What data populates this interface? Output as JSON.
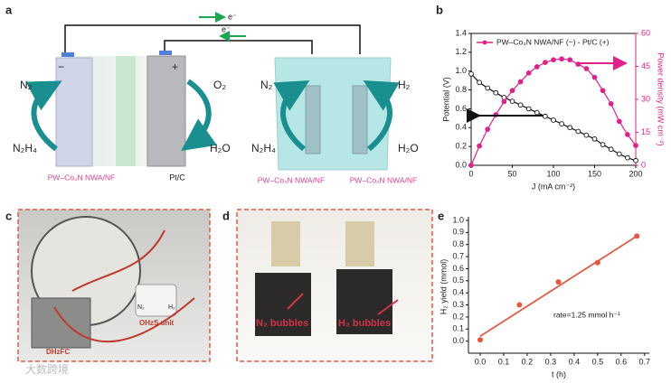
{
  "labels": [
    "a",
    "b",
    "c",
    "d",
    "e"
  ],
  "diagram": {
    "electron_top": "e⁻",
    "electron_inner": "e⁻",
    "minus": "−",
    "plus": "+",
    "left_cell": {
      "anode_out": "N₂",
      "anode_in": "N₂H₄",
      "anode": "PW–Co₃N NWA/NF",
      "cathode_in": "O₂",
      "cathode_out": "H₂O",
      "cathode": "Pt/C"
    },
    "right_cell": {
      "left_out": "N₂",
      "left_in": "N₂H₄",
      "left": "PW–Co₃N NWA/NF",
      "right_out": "H₂",
      "right_in": "H₂O",
      "right": "PW–Co₃N NWA/NF"
    }
  },
  "photo_c": {
    "device": "DHzFC",
    "unit": "OHzS unit",
    "n2": "N₂",
    "h2": "H₂"
  },
  "photo_d": {
    "left": "N₂ bubbles",
    "right": "H₂ bubbles"
  },
  "watermark": "大数跨境",
  "chart_data": [
    {
      "type": "line",
      "x": [
        0,
        10,
        20,
        30,
        40,
        50,
        60,
        70,
        80,
        90,
        100,
        110,
        120,
        130,
        140,
        150,
        160,
        170,
        180,
        190,
        200
      ],
      "series": [
        {
          "color": "#111111",
          "values": [
            0.97,
            0.88,
            0.82,
            0.77,
            0.72,
            0.68,
            0.64,
            0.6,
            0.56,
            0.52,
            0.48,
            0.44,
            0.4,
            0.36,
            0.32,
            0.28,
            0.22,
            0.17,
            0.12,
            0.08,
            0.05
          ]
        },
        {
          "name": "PW–Co₃N NWA/NF (−) - Pt/C (+)",
          "color": "#e0218a",
          "axis": "y2",
          "values": [
            0,
            8.8,
            16.4,
            23,
            29,
            34,
            38,
            42,
            44.8,
            46.8,
            48,
            48.4,
            48,
            46,
            44,
            40,
            34,
            28,
            20,
            14,
            9
          ]
        }
      ],
      "xlabel": "J (mA cm⁻²)",
      "ylabel": "Potential (V)",
      "y2label": "Power density (mW cm⁻²)",
      "xlim": [
        0,
        200
      ],
      "xticks": [
        0,
        50,
        100,
        150,
        200
      ],
      "ylim": [
        0,
        1.4
      ],
      "yticks": [
        {
          "value": 0,
          "label": "0.0"
        },
        0.2,
        0.4,
        0.6,
        0.8,
        {
          "value": 1,
          "label": "1.0"
        },
        1.2,
        1.4
      ],
      "y2lim": [
        0,
        60
      ],
      "y2ticks": [
        0,
        15,
        30,
        45,
        60
      ],
      "legend": "upper left"
    },
    {
      "type": "scatter",
      "x": [
        0,
        0.167,
        0.333,
        0.5,
        0.667
      ],
      "values": [
        0.01,
        0.3,
        0.49,
        0.65,
        0.87
      ],
      "color": "#e8553f",
      "fit": {
        "x": [
          0,
          0.667
        ],
        "values": [
          0.04,
          0.87
        ],
        "color": "#e05a45"
      },
      "xlabel": "t (h)",
      "ylabel": "H₂ yield (mmol)",
      "annotation": "rate=1.25 mmol h⁻¹",
      "xlim": [
        -0.05,
        0.72
      ],
      "xticks": [
        {
          "value": 0,
          "label": "0.0"
        },
        0.1,
        0.2,
        0.3,
        0.4,
        0.5,
        0.6,
        0.7
      ],
      "ylim": [
        -0.1,
        1.0
      ],
      "yticks": [
        {
          "value": 0,
          "label": "0.0"
        },
        0.1,
        0.2,
        0.3,
        0.4,
        0.5,
        0.6,
        0.7,
        0.8,
        0.9,
        {
          "value": 1,
          "label": "1.0"
        }
      ]
    }
  ]
}
